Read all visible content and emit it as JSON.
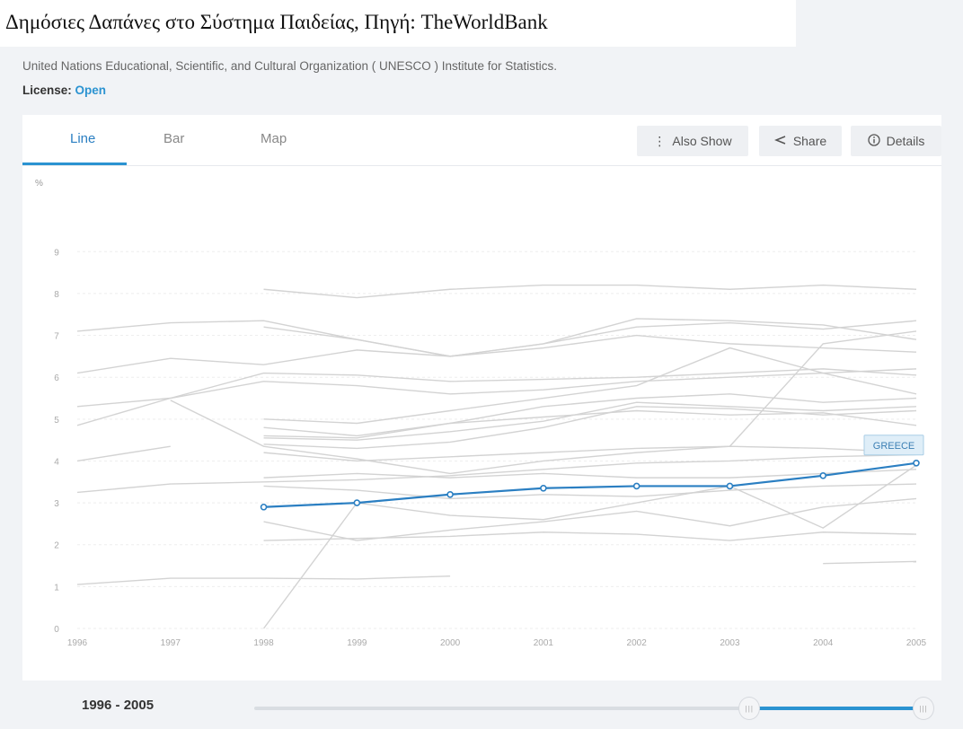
{
  "page": {
    "title": "Δημόσιες Δαπάνες στο Σύστημα Παιδείας, Πηγή: TheWorldBank",
    "source": "United Nations Educational, Scientific, and Cultural Organization ( UNESCO ) Institute for Statistics.",
    "license_label": "License: ",
    "license_value": "Open"
  },
  "tabs": [
    {
      "label": "Line",
      "active": true
    },
    {
      "label": "Bar",
      "active": false
    },
    {
      "label": "Map",
      "active": false
    }
  ],
  "toolbar": {
    "also_show": "Also Show",
    "share": "Share",
    "details": "Details"
  },
  "range": {
    "label": "1996 - 2005",
    "start": 1996,
    "end": 2005,
    "selected_start_fraction": 0.74,
    "selected_end_fraction": 1.0,
    "handle_glyph": "|||"
  },
  "colors": {
    "highlight": "#2b7fc2",
    "background_lines": "#d3d3d3",
    "accent": "#2b93d1"
  },
  "chart_data": {
    "type": "line",
    "ylabel": "%",
    "ylim": [
      0,
      10
    ],
    "yticks": [
      0,
      1,
      2,
      3,
      4,
      5,
      6,
      7,
      8,
      9
    ],
    "x": [
      1996,
      1997,
      1998,
      1999,
      2000,
      2001,
      2002,
      2003,
      2004,
      2005
    ],
    "grid": true,
    "highlight_series": {
      "name": "GREECE",
      "values": [
        null,
        null,
        2.9,
        3.0,
        3.2,
        3.35,
        3.4,
        3.4,
        3.65,
        3.95
      ]
    },
    "background_series": [
      [
        null,
        null,
        8.1,
        7.9,
        8.1,
        8.2,
        8.2,
        8.1,
        8.2,
        8.1
      ],
      [
        7.1,
        7.3,
        7.35,
        6.9,
        6.5,
        6.8,
        7.4,
        7.35,
        7.25,
        6.9
      ],
      [
        null,
        null,
        7.2,
        6.9,
        6.5,
        6.7,
        7.0,
        6.8,
        6.7,
        6.6
      ],
      [
        6.1,
        6.45,
        6.3,
        6.65,
        6.5,
        6.8,
        7.2,
        7.3,
        7.15,
        7.35
      ],
      [
        5.3,
        5.5,
        5.9,
        5.8,
        5.6,
        5.7,
        5.9,
        6.0,
        6.1,
        6.2
      ],
      [
        4.85,
        5.5,
        6.1,
        6.05,
        5.9,
        5.95,
        6.0,
        6.1,
        6.2,
        6.05
      ],
      [
        null,
        null,
        5.0,
        4.9,
        5.2,
        5.5,
        5.8,
        6.7,
        6.1,
        5.6
      ],
      [
        null,
        null,
        4.8,
        4.6,
        4.9,
        5.3,
        5.5,
        5.6,
        5.4,
        5.5
      ],
      [
        null,
        null,
        4.55,
        4.5,
        4.7,
        4.95,
        5.4,
        5.3,
        5.2,
        5.3
      ],
      [
        null,
        null,
        4.4,
        4.3,
        4.45,
        4.8,
        5.3,
        5.25,
        5.1,
        5.2
      ],
      [
        null,
        null,
        4.2,
        4.0,
        4.1,
        4.2,
        4.3,
        4.35,
        4.3,
        4.2
      ],
      [
        null,
        5.45,
        4.35,
        4.05,
        3.7,
        4.0,
        4.2,
        4.35,
        6.8,
        7.1
      ],
      [
        4.0,
        4.35,
        null,
        null,
        null,
        null,
        null,
        null,
        null,
        null
      ],
      [
        3.25,
        3.45,
        3.5,
        3.55,
        3.65,
        3.8,
        3.95,
        4.0,
        4.1,
        4.15
      ],
      [
        null,
        null,
        3.4,
        3.3,
        3.1,
        3.2,
        3.15,
        3.3,
        3.4,
        3.45
      ],
      [
        null,
        null,
        2.55,
        2.1,
        2.35,
        2.55,
        2.8,
        2.45,
        2.9,
        3.1
      ],
      [
        null,
        null,
        2.1,
        2.15,
        2.2,
        2.3,
        2.25,
        2.1,
        2.3,
        2.25
      ],
      [
        null,
        null,
        0.0,
        3.0,
        2.7,
        2.6,
        3.0,
        3.4,
        2.4,
        3.9
      ],
      [
        1.05,
        1.2,
        1.2,
        1.18,
        1.25,
        null,
        null,
        null,
        null,
        null
      ],
      [
        null,
        null,
        null,
        null,
        null,
        null,
        null,
        null,
        1.55,
        1.6
      ],
      [
        null,
        null,
        3.6,
        3.7,
        3.6,
        3.7,
        3.6,
        3.6,
        3.7,
        3.8
      ],
      [
        null,
        null,
        4.6,
        4.55,
        4.9,
        5.05,
        5.2,
        5.1,
        5.15,
        4.85
      ]
    ]
  }
}
